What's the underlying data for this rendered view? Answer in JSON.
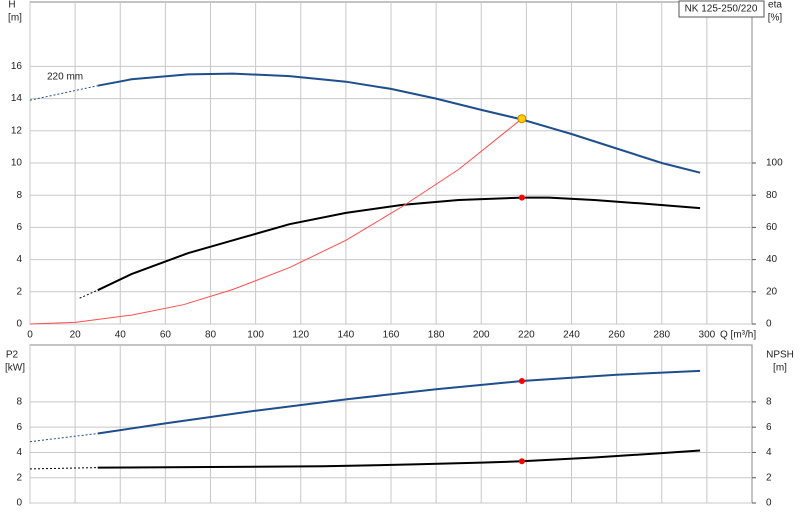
{
  "chart_data": [
    {
      "type": "line",
      "box_label": "NK 125-250/220",
      "y_label": "H",
      "y_unit": "[m]",
      "y2_label": "eta",
      "y2_unit": "[%]",
      "x_label": "Q [m³/h]",
      "annotation": "220 mm",
      "xlim": [
        0,
        320
      ],
      "xticks": [
        0,
        20,
        40,
        60,
        80,
        100,
        120,
        140,
        160,
        180,
        200,
        220,
        240,
        260,
        280,
        300
      ],
      "ylim": [
        0,
        20
      ],
      "yticks": [
        0,
        2,
        4,
        6,
        8,
        10,
        12,
        14,
        16
      ],
      "y2lim": [
        0,
        200
      ],
      "y2ticks": [
        0,
        20,
        40,
        60,
        80,
        100
      ],
      "grid": true,
      "series": [
        {
          "color": "#1f4e8c",
          "dashed": true,
          "x": [
            0,
            30
          ],
          "values": [
            13.9,
            14.8
          ]
        },
        {
          "color": "#1f4e8c",
          "x": [
            30,
            45,
            70,
            90,
            115,
            140,
            160,
            180,
            200,
            218,
            240,
            260,
            280,
            297
          ],
          "values": [
            14.8,
            15.2,
            15.5,
            15.55,
            15.4,
            15.05,
            14.6,
            14.0,
            13.3,
            12.7,
            11.8,
            10.9,
            10.0,
            9.4
          ]
        },
        {
          "color": "#000000",
          "dashed": true,
          "axis": "y2",
          "x": [
            22,
            30
          ],
          "values": [
            16,
            21
          ]
        },
        {
          "color": "#000000",
          "axis": "y2",
          "x": [
            30,
            45,
            70,
            95,
            115,
            140,
            165,
            190,
            218,
            230,
            250,
            270,
            297
          ],
          "values": [
            21,
            31,
            44,
            54,
            62,
            69,
            74,
            77,
            78.5,
            78.5,
            77,
            75,
            72
          ]
        },
        {
          "color": "#ff4d4d",
          "thin": true,
          "x": [
            0,
            20,
            45,
            68,
            90,
            115,
            140,
            165,
            190,
            218
          ],
          "values": [
            0,
            0.1,
            0.55,
            1.2,
            2.15,
            3.5,
            5.2,
            7.3,
            9.6,
            12.75
          ]
        },
        {
          "color": "#ffcc00",
          "marker": true,
          "x": [
            218
          ],
          "values": [
            12.75
          ]
        },
        {
          "color": "#ff0000",
          "marker": true,
          "axis": "y2",
          "x": [
            218
          ],
          "values": [
            78.5
          ]
        }
      ]
    },
    {
      "type": "line",
      "y_label": "P2",
      "y_unit": "[kW]",
      "y2_label": "NPSH",
      "y2_unit": "[m]",
      "xlim": [
        0,
        320
      ],
      "xgrid": [
        0,
        20,
        40,
        60,
        80,
        100,
        120,
        140,
        160,
        180,
        200,
        220,
        240,
        260,
        280,
        300
      ],
      "ylim": [
        0,
        12.5
      ],
      "yticks": [
        0,
        2,
        4,
        6,
        8
      ],
      "y2lim": [
        0,
        12.5
      ],
      "y2ticks": [
        0,
        2,
        4,
        6,
        8
      ],
      "grid": true,
      "series": [
        {
          "color": "#1f4e8c",
          "dashed": true,
          "x": [
            0,
            30
          ],
          "values": [
            4.85,
            5.5
          ]
        },
        {
          "color": "#1f4e8c",
          "x": [
            30,
            60,
            100,
            140,
            180,
            218,
            260,
            297
          ],
          "values": [
            5.5,
            6.3,
            7.3,
            8.2,
            9.0,
            9.65,
            10.15,
            10.45
          ]
        },
        {
          "color": "#000000",
          "dashed": true,
          "axis": "y2",
          "x": [
            0,
            30
          ],
          "values": [
            2.7,
            2.8
          ]
        },
        {
          "color": "#000000",
          "axis": "y2",
          "x": [
            30,
            80,
            130,
            170,
            200,
            218,
            250,
            280,
            297
          ],
          "values": [
            2.8,
            2.85,
            2.9,
            3.05,
            3.2,
            3.3,
            3.6,
            3.95,
            4.15
          ]
        },
        {
          "color": "#ff0000",
          "marker": true,
          "x": [
            218
          ],
          "values": [
            9.65
          ]
        },
        {
          "color": "#ff0000",
          "marker": true,
          "axis": "y2",
          "x": [
            218
          ],
          "values": [
            3.3
          ]
        }
      ]
    }
  ]
}
